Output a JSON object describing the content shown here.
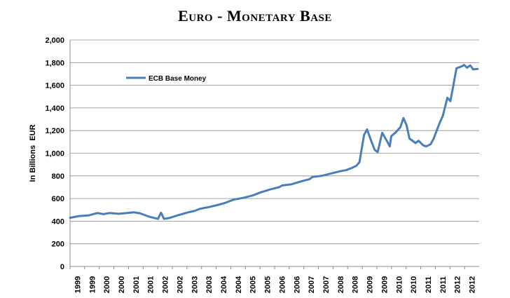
{
  "chart_data": {
    "type": "line",
    "title": "Euro - Monetary Base",
    "ylabel": "In Billions  EUR",
    "xlabel": "",
    "ylim": [
      0,
      2000
    ],
    "ytick_step": 200,
    "grid": "horizontal",
    "legend_position": "top-left",
    "yticks": [
      "0",
      "200",
      "400",
      "600",
      "800",
      "1,000",
      "1,200",
      "1,400",
      "1,600",
      "1,800",
      "2,000"
    ],
    "xticks": [
      "1999",
      "1999",
      "2000",
      "2000",
      "2001",
      "2001",
      "2002",
      "2002",
      "2003",
      "2003",
      "2004",
      "2004",
      "2005",
      "2005",
      "2006",
      "2006",
      "2007",
      "2007",
      "2008",
      "2008",
      "2009",
      "2009",
      "2010",
      "2010",
      "2011",
      "2011",
      "2012",
      "2012"
    ],
    "series": [
      {
        "name": "ECB Base Money",
        "color": "#4a7ebb",
        "x": [
          1999.0,
          1999.3,
          1999.6,
          1999.9,
          2000.1,
          2000.3,
          2000.6,
          2000.9,
          2001.1,
          2001.3,
          2001.6,
          2001.9,
          2002.0,
          2002.1,
          2002.3,
          2002.6,
          2002.9,
          2003.1,
          2003.3,
          2003.6,
          2003.9,
          2004.1,
          2004.4,
          2004.7,
          2005.0,
          2005.3,
          2005.6,
          2005.9,
          2006.0,
          2006.3,
          2006.6,
          2006.9,
          2007.0,
          2007.3,
          2007.6,
          2007.9,
          2008.1,
          2008.3,
          2008.45,
          2008.55,
          2008.7,
          2008.8,
          2008.95,
          2009.05,
          2009.15,
          2009.3,
          2009.45,
          2009.55,
          2009.6,
          2009.75,
          2009.9,
          2010.0,
          2010.1,
          2010.2,
          2010.4,
          2010.5,
          2010.65,
          2010.75,
          2010.9,
          2011.0,
          2011.1,
          2011.2,
          2011.3,
          2011.45,
          2011.55,
          2011.65,
          2011.75,
          2011.85,
          2011.95,
          2012.0,
          2012.1,
          2012.2,
          2012.25,
          2012.3,
          2012.45
        ],
        "y": [
          430,
          445,
          450,
          472,
          462,
          472,
          465,
          472,
          478,
          470,
          440,
          420,
          475,
          420,
          430,
          455,
          478,
          490,
          510,
          525,
          545,
          560,
          590,
          605,
          625,
          655,
          680,
          700,
          715,
          725,
          750,
          770,
          790,
          800,
          820,
          840,
          850,
          870,
          890,
          920,
          1160,
          1210,
          1100,
          1030,
          1010,
          1180,
          1110,
          1060,
          1150,
          1185,
          1230,
          1310,
          1250,
          1130,
          1090,
          1110,
          1070,
          1060,
          1080,
          1130,
          1200,
          1270,
          1330,
          1490,
          1460,
          1600,
          1750,
          1760,
          1770,
          1780,
          1755,
          1775,
          1760,
          1740,
          1745
        ]
      }
    ]
  }
}
